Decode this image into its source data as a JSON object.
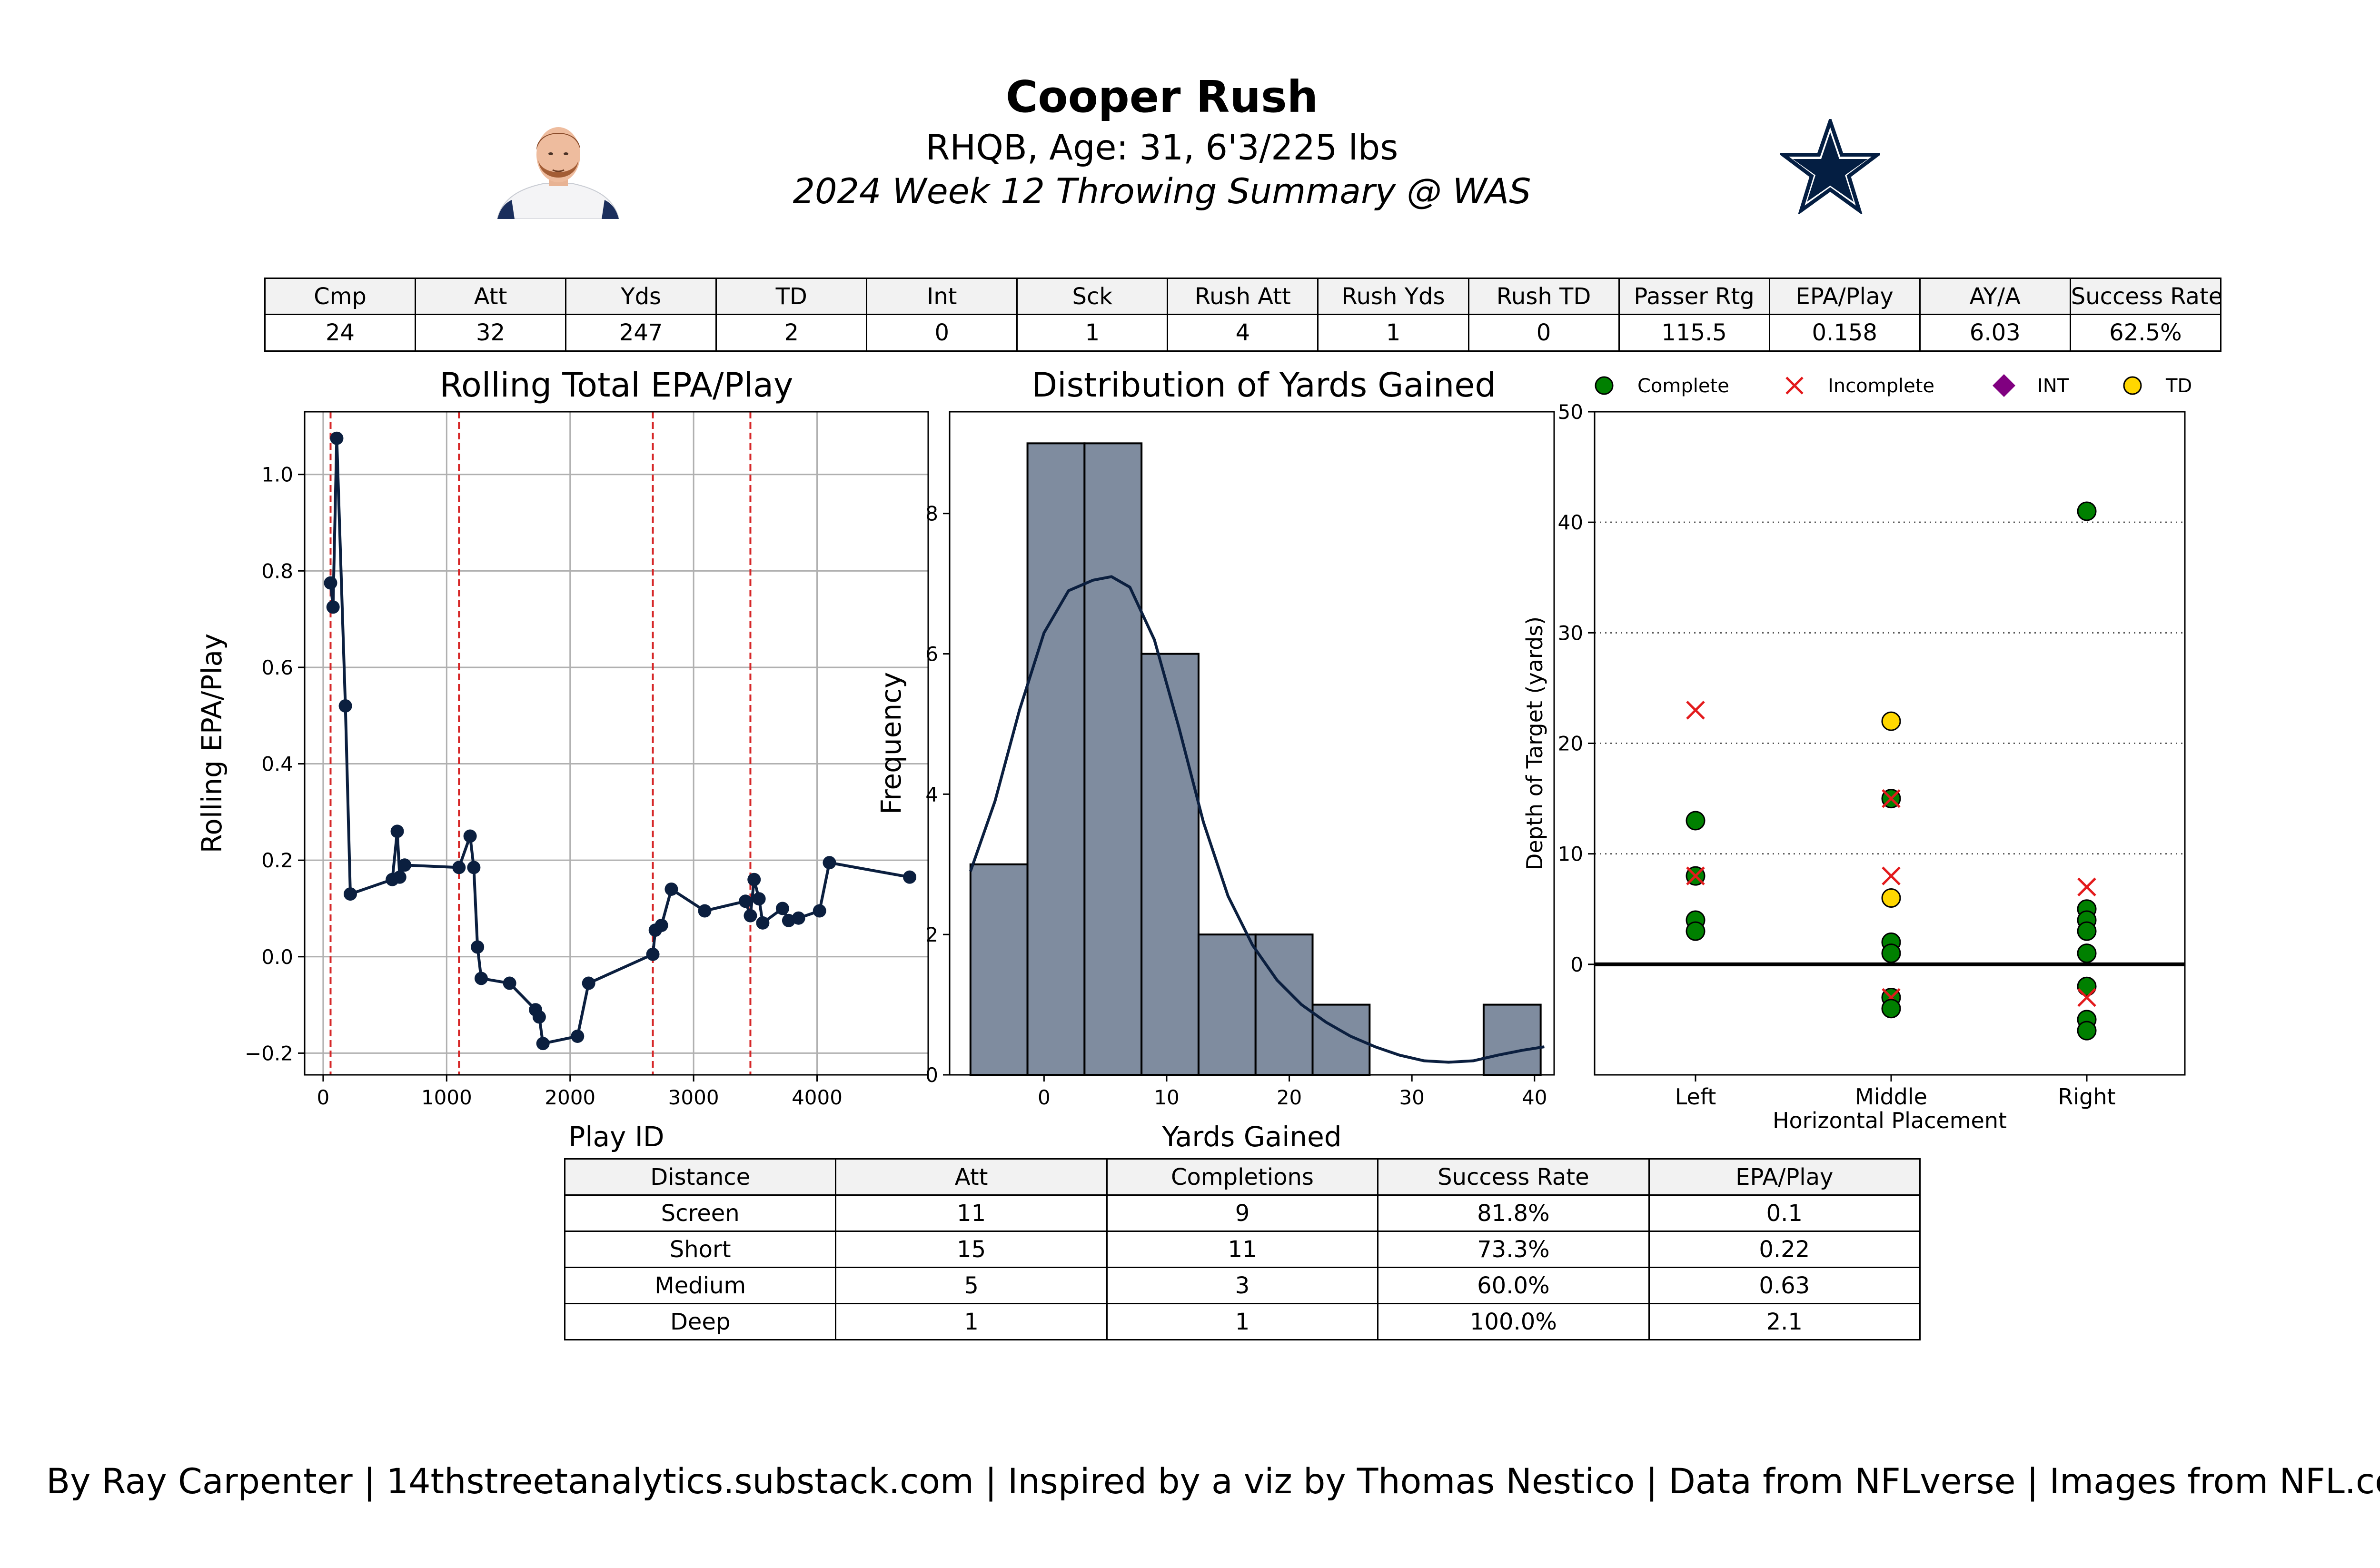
{
  "header": {
    "player_name": "Cooper Rush",
    "player_info": "RHQB, Age: 31, 6'3/225 lbs",
    "game_summary": "2024 Week 12 Throwing Summary @ WAS",
    "team_logo_icon": "star-logo-icon",
    "player_headshot_icon": "player-headshot-icon",
    "team_color": "#041E42"
  },
  "stats_table": {
    "headers": [
      "Cmp",
      "Att",
      "Yds",
      "TD",
      "Int",
      "Sck",
      "Rush Att",
      "Rush Yds",
      "Rush TD",
      "Passer Rtg",
      "EPA/Play",
      "AY/A",
      "Success Rate"
    ],
    "values": [
      "24",
      "32",
      "247",
      "2",
      "0",
      "1",
      "4",
      "1",
      "0",
      "115.5",
      "0.158",
      "6.03",
      "62.5%"
    ]
  },
  "distance_table": {
    "headers": [
      "Distance",
      "Att",
      "Completions",
      "Success Rate",
      "EPA/Play"
    ],
    "rows": [
      [
        "Screen",
        "11",
        "9",
        "81.8%",
        "0.1"
      ],
      [
        "Short",
        "15",
        "11",
        "73.3%",
        "0.22"
      ],
      [
        "Medium",
        "5",
        "3",
        "60.0%",
        "0.63"
      ],
      [
        "Deep",
        "1",
        "1",
        "100.0%",
        "2.1"
      ]
    ]
  },
  "footer": "By Ray Carpenter | 14thstreetanalytics.substack.com | Inspired by a viz by Thomas Nestico | Data from NFLverse | Images from NFL.com",
  "chart_data": [
    {
      "type": "line",
      "title": "Rolling Total EPA/Play",
      "xlabel": "Play ID",
      "ylabel": "Rolling EPA/Play",
      "xlim": [
        -150,
        4900
      ],
      "ylim": [
        -0.245,
        1.13
      ],
      "xticks": [
        0,
        1000,
        2000,
        3000,
        4000
      ],
      "yticks": [
        -0.2,
        0.0,
        0.2,
        0.4,
        0.6,
        0.8,
        1.0
      ],
      "ytick_labels": [
        "−0.2",
        "0.0",
        "0.2",
        "0.4",
        "0.6",
        "0.8",
        "1.0"
      ],
      "grid": true,
      "line_color": "#0b1f3f",
      "vline_color": "#d62728",
      "vlines": [
        60,
        1100,
        2670,
        3460
      ],
      "points": [
        [
          60,
          0.775
        ],
        [
          80,
          0.725
        ],
        [
          110,
          1.075
        ],
        [
          180,
          0.52
        ],
        [
          220,
          0.13
        ],
        [
          560,
          0.16
        ],
        [
          600,
          0.26
        ],
        [
          620,
          0.165
        ],
        [
          660,
          0.19
        ],
        [
          1100,
          0.185
        ],
        [
          1190,
          0.25
        ],
        [
          1220,
          0.185
        ],
        [
          1250,
          0.02
        ],
        [
          1280,
          -0.045
        ],
        [
          1510,
          -0.055
        ],
        [
          1720,
          -0.11
        ],
        [
          1750,
          -0.125
        ],
        [
          1780,
          -0.18
        ],
        [
          2060,
          -0.165
        ],
        [
          2150,
          -0.055
        ],
        [
          2670,
          0.005
        ],
        [
          2690,
          0.055
        ],
        [
          2740,
          0.065
        ],
        [
          2820,
          0.14
        ],
        [
          3090,
          0.095
        ],
        [
          3420,
          0.115
        ],
        [
          3460,
          0.085
        ],
        [
          3490,
          0.16
        ],
        [
          3530,
          0.12
        ],
        [
          3560,
          0.07
        ],
        [
          3720,
          0.1
        ],
        [
          3770,
          0.075
        ],
        [
          3850,
          0.08
        ],
        [
          4020,
          0.095
        ],
        [
          4100,
          0.195
        ],
        [
          4750,
          0.165
        ]
      ]
    },
    {
      "type": "bar",
      "title": "Distribution of Yards Gained",
      "xlabel": "Yards Gained",
      "ylabel": "Frequency",
      "xlim": [
        -7.7,
        41.6
      ],
      "ylim": [
        0,
        9.45
      ],
      "xticks": [
        0,
        10,
        20,
        30,
        40
      ],
      "yticks": [
        0,
        2,
        4,
        6,
        8
      ],
      "bar_color": "#7f8c9f",
      "bins": [
        {
          "x0": -6.0,
          "x1": -1.35,
          "count": 3
        },
        {
          "x0": -1.35,
          "x1": 3.3,
          "count": 9
        },
        {
          "x0": 3.3,
          "x1": 7.95,
          "count": 9
        },
        {
          "x0": 7.95,
          "x1": 12.6,
          "count": 6
        },
        {
          "x0": 12.6,
          "x1": 17.25,
          "count": 2
        },
        {
          "x0": 17.25,
          "x1": 21.9,
          "count": 2
        },
        {
          "x0": 21.9,
          "x1": 26.55,
          "count": 1
        },
        {
          "x0": 26.55,
          "x1": 31.2,
          "count": 0
        },
        {
          "x0": 31.2,
          "x1": 35.85,
          "count": 0
        },
        {
          "x0": 35.85,
          "x1": 40.5,
          "count": 1
        }
      ],
      "kde": [
        [
          -6,
          2.9
        ],
        [
          -4,
          3.9
        ],
        [
          -2,
          5.2
        ],
        [
          0,
          6.3
        ],
        [
          2,
          6.9
        ],
        [
          4,
          7.05
        ],
        [
          5.5,
          7.1
        ],
        [
          7,
          6.95
        ],
        [
          9,
          6.2
        ],
        [
          11,
          4.95
        ],
        [
          13,
          3.6
        ],
        [
          15,
          2.55
        ],
        [
          17,
          1.85
        ],
        [
          19,
          1.35
        ],
        [
          21,
          1.0
        ],
        [
          23,
          0.75
        ],
        [
          25,
          0.55
        ],
        [
          27,
          0.4
        ],
        [
          29,
          0.28
        ],
        [
          31,
          0.2
        ],
        [
          33,
          0.18
        ],
        [
          35,
          0.2
        ],
        [
          37,
          0.28
        ],
        [
          39,
          0.35
        ],
        [
          40.8,
          0.4
        ]
      ]
    },
    {
      "type": "scatter",
      "title": "",
      "xlabel": "Horizontal Placement",
      "ylabel": "Depth of Target (yards)",
      "categories": [
        "Left",
        "Middle",
        "Right"
      ],
      "ylim": [
        -10,
        50
      ],
      "yticks": [
        0,
        10,
        20,
        30,
        40,
        50
      ],
      "grid": "dotted-y",
      "legend": [
        {
          "label": "Complete",
          "marker": "circle",
          "color": "#008000"
        },
        {
          "label": "Incomplete",
          "marker": "x",
          "color": "#e31a1c"
        },
        {
          "label": "INT",
          "marker": "diamond",
          "color": "#800080"
        },
        {
          "label": "TD",
          "marker": "circle",
          "color": "#ffd700"
        }
      ],
      "points": [
        {
          "cat": "Left",
          "y": 23,
          "result": "Incomplete"
        },
        {
          "cat": "Left",
          "y": 13,
          "result": "Complete"
        },
        {
          "cat": "Left",
          "y": 8,
          "result": "Complete"
        },
        {
          "cat": "Left",
          "y": 8,
          "result": "Incomplete"
        },
        {
          "cat": "Left",
          "y": 4,
          "result": "Complete"
        },
        {
          "cat": "Left",
          "y": 3,
          "result": "Complete"
        },
        {
          "cat": "Middle",
          "y": 22,
          "result": "TD"
        },
        {
          "cat": "Middle",
          "y": 15,
          "result": "Complete"
        },
        {
          "cat": "Middle",
          "y": 15,
          "result": "Incomplete"
        },
        {
          "cat": "Middle",
          "y": 8,
          "result": "Incomplete"
        },
        {
          "cat": "Middle",
          "y": 6,
          "result": "TD"
        },
        {
          "cat": "Middle",
          "y": 2,
          "result": "Complete"
        },
        {
          "cat": "Middle",
          "y": 1,
          "result": "Complete"
        },
        {
          "cat": "Middle",
          "y": -3,
          "result": "Complete"
        },
        {
          "cat": "Middle",
          "y": -3,
          "result": "Incomplete"
        },
        {
          "cat": "Middle",
          "y": -4,
          "result": "Complete"
        },
        {
          "cat": "Right",
          "y": 41,
          "result": "Complete"
        },
        {
          "cat": "Right",
          "y": 7,
          "result": "Incomplete"
        },
        {
          "cat": "Right",
          "y": 5,
          "result": "Complete"
        },
        {
          "cat": "Right",
          "y": 4,
          "result": "Complete"
        },
        {
          "cat": "Right",
          "y": 3,
          "result": "Complete"
        },
        {
          "cat": "Right",
          "y": 1,
          "result": "Complete"
        },
        {
          "cat": "Right",
          "y": -2,
          "result": "Complete"
        },
        {
          "cat": "Right",
          "y": -3,
          "result": "Incomplete"
        },
        {
          "cat": "Right",
          "y": -5,
          "result": "Complete"
        },
        {
          "cat": "Right",
          "y": -6,
          "result": "Complete"
        }
      ]
    }
  ]
}
